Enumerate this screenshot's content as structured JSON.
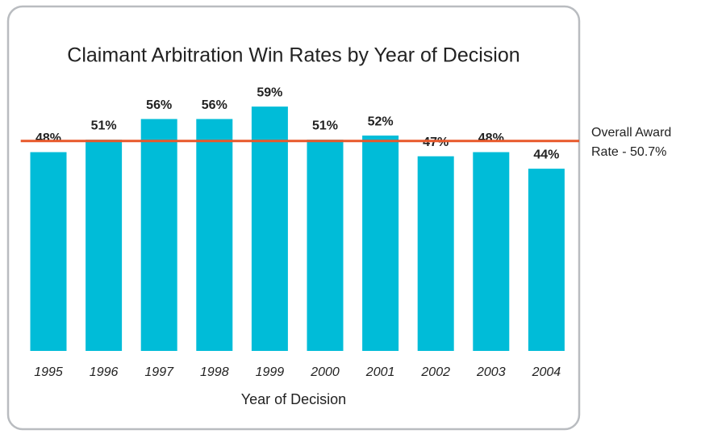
{
  "chart_data": {
    "type": "bar",
    "title": "Claimant Arbitration Win Rates by Year of Decision",
    "x_label": "Year of Decision",
    "categories": [
      "1995",
      "1996",
      "1997",
      "1998",
      "1999",
      "2000",
      "2001",
      "2002",
      "2003",
      "2004"
    ],
    "values": [
      48,
      51,
      56,
      56,
      59,
      51,
      52,
      47,
      48,
      44
    ],
    "value_labels": [
      "48%",
      "51%",
      "56%",
      "56%",
      "59%",
      "51%",
      "52%",
      "47%",
      "48%",
      "44%"
    ],
    "color": "#00bcd8",
    "ylim": [
      0,
      60
    ],
    "reference_line": {
      "value": 50.7,
      "color": "#e8582a",
      "label": [
        "Overall Award",
        "Rate - 50.7%"
      ]
    }
  }
}
